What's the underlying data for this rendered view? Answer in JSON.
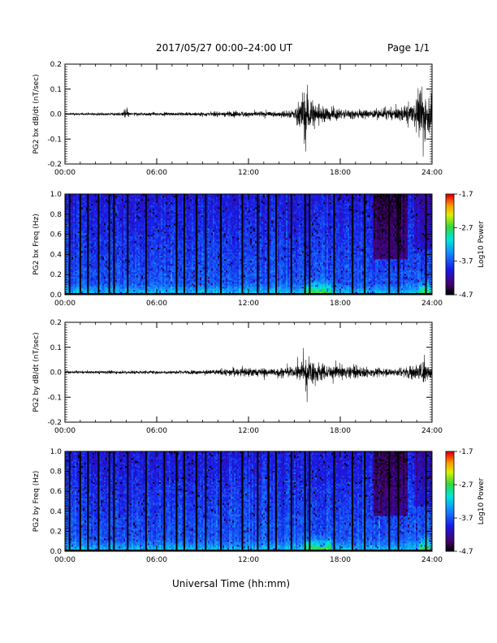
{
  "header": {
    "title": "2017/05/27  00:00–24:00 UT",
    "page": "Page 1/1"
  },
  "x_axis_title": "Universal Time (hh:mm)",
  "chart_data": [
    {
      "type": "line",
      "ylabel": "PG2 bx dB/dt (nT/sec)",
      "xlim": [
        "00:00",
        "24:00"
      ],
      "ylim": [
        -0.2,
        0.2
      ],
      "x_ticks": [
        "00:00",
        "06:00",
        "12:00",
        "18:00",
        "24:00"
      ],
      "y_ticks": [
        "-0.2",
        "-0.1",
        "0.0",
        "0.1",
        "0.2"
      ],
      "line_color": "#000000",
      "envelope_hours": [
        0,
        2,
        3.8,
        4,
        4.2,
        6,
        9,
        11,
        13,
        15,
        15.4,
        15.7,
        16.2,
        17,
        18,
        20,
        21.5,
        22.8,
        23.3,
        24
      ],
      "envelope_amplitude": [
        0.006,
        0.006,
        0.008,
        0.035,
        0.008,
        0.008,
        0.01,
        0.015,
        0.012,
        0.02,
        0.085,
        0.12,
        0.07,
        0.04,
        0.025,
        0.02,
        0.03,
        0.06,
        0.12,
        0.1
      ],
      "extremes": [
        {
          "time": "15:45",
          "value": -0.15
        },
        {
          "time": "23:25",
          "value": -0.17
        },
        {
          "time": "23:20",
          "value": 0.11
        }
      ]
    },
    {
      "type": "heatmap",
      "ylabel": "PG2 bx Freq (Hz)",
      "xlim": [
        "00:00",
        "24:00"
      ],
      "ylim": [
        0.0,
        1.0
      ],
      "x_ticks": [
        "00:00",
        "06:00",
        "12:00",
        "18:00",
        "24:00"
      ],
      "y_ticks": [
        "0.0",
        "0.2",
        "0.4",
        "0.6",
        "0.8",
        "1.0"
      ],
      "colorbar": {
        "label": "Log10 Power",
        "range": [
          -4.7,
          -1.7
        ],
        "ticks": [
          "-1.7",
          "-2.7",
          "-3.7",
          "-4.7"
        ]
      },
      "data_gap_hours": [
        0.3,
        1.0,
        1.5,
        2.2,
        2.9,
        3.2,
        4.1,
        5.3,
        7.3,
        7.8,
        8.6,
        9.2,
        10.2,
        11.6,
        12.6,
        13.3,
        13.8,
        14.8,
        15.7,
        16.0,
        17.6,
        18.8,
        19.6,
        21.2,
        21.8,
        23.6
      ],
      "active_hours": [
        [
          15.6,
          17.4
        ],
        [
          23.1,
          23.9
        ]
      ]
    },
    {
      "type": "line",
      "ylabel": "PG2 by dB/dt (nT/sec)",
      "xlim": [
        "00:00",
        "24:00"
      ],
      "ylim": [
        -0.2,
        0.2
      ],
      "x_ticks": [
        "00:00",
        "06:00",
        "12:00",
        "18:00",
        "24:00"
      ],
      "y_ticks": [
        "-0.2",
        "-0.1",
        "0.0",
        "0.1",
        "0.2"
      ],
      "line_color": "#000000",
      "envelope_hours": [
        0,
        3,
        6,
        9,
        11,
        12,
        13,
        15,
        15.5,
        15.8,
        16.3,
        17,
        18,
        19,
        20,
        21.5,
        23,
        23.5,
        24
      ],
      "envelope_amplitude": [
        0.006,
        0.008,
        0.008,
        0.01,
        0.02,
        0.025,
        0.02,
        0.025,
        0.06,
        0.08,
        0.06,
        0.04,
        0.035,
        0.03,
        0.02,
        0.02,
        0.04,
        0.05,
        0.035
      ],
      "extremes": [
        {
          "time": "15:50",
          "value": -0.12
        },
        {
          "time": "23:30",
          "value": 0.07
        }
      ]
    },
    {
      "type": "heatmap",
      "ylabel": "PG2 by Freq (Hz)",
      "xlim": [
        "00:00",
        "24:00"
      ],
      "ylim": [
        0.0,
        1.0
      ],
      "x_ticks": [
        "00:00",
        "06:00",
        "12:00",
        "18:00",
        "24:00"
      ],
      "y_ticks": [
        "0.0",
        "0.2",
        "0.4",
        "0.6",
        "0.8",
        "1.0"
      ],
      "colorbar": {
        "label": "Log10 Power",
        "range": [
          -4.7,
          -1.7
        ],
        "ticks": [
          "-1.7",
          "-2.7",
          "-3.7",
          "-4.7"
        ]
      },
      "data_gap_hours": [
        0.3,
        1.0,
        1.5,
        2.2,
        2.9,
        3.2,
        4.1,
        5.3,
        6.5,
        7.3,
        7.8,
        8.6,
        9.2,
        10.2,
        11.6,
        12.6,
        13.3,
        13.8,
        14.8,
        15.7,
        16.0,
        17.6,
        18.8,
        19.6,
        21.2,
        21.8,
        23.6
      ],
      "active_hours": [
        [
          15.6,
          17.4
        ],
        [
          23.1,
          23.9
        ]
      ]
    }
  ]
}
